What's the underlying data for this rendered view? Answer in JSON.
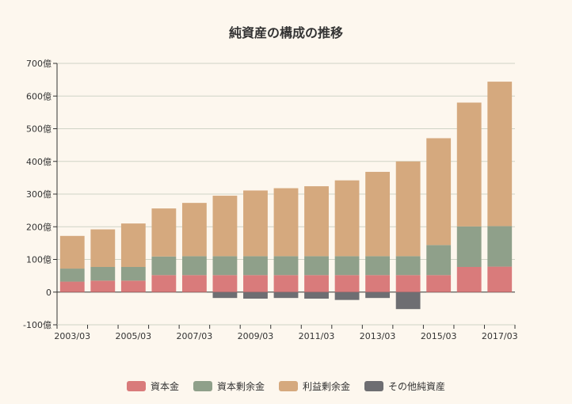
{
  "chart_data": {
    "type": "bar",
    "stacked": true,
    "title": "純資産の構成の推移",
    "xlabel": "",
    "ylabel": "",
    "ylim": [
      -100,
      700
    ],
    "yticks": [
      -100,
      0,
      100,
      200,
      300,
      400,
      500,
      600,
      700
    ],
    "ytick_labels": [
      "-100億",
      "0",
      "100億",
      "200億",
      "300億",
      "400億",
      "500億",
      "600億",
      "700億"
    ],
    "categories": [
      "2003/03",
      "2004/03",
      "2005/03",
      "2006/03",
      "2007/03",
      "2008/03",
      "2009/03",
      "2010/03",
      "2011/03",
      "2012/03",
      "2013/03",
      "2014/03",
      "2015/03",
      "2016/03",
      "2017/03"
    ],
    "xtick_labels": [
      "2003/03",
      "",
      "2005/03",
      "",
      "2007/03",
      "",
      "2009/03",
      "",
      "2011/03",
      "",
      "2013/03",
      "",
      "2015/03",
      "",
      "2017/03"
    ],
    "series": [
      {
        "name": "資本金",
        "color": "#d97b7b",
        "values": [
          32,
          35,
          35,
          52,
          52,
          52,
          52,
          52,
          52,
          52,
          52,
          52,
          52,
          77,
          78
        ]
      },
      {
        "name": "資本剰余金",
        "color": "#8fa08a",
        "values": [
          40,
          42,
          42,
          57,
          58,
          58,
          58,
          58,
          58,
          58,
          58,
          58,
          92,
          124,
          124
        ]
      },
      {
        "name": "利益剰余金",
        "color": "#d5a97e",
        "values": [
          100,
          115,
          133,
          147,
          163,
          185,
          201,
          208,
          214,
          232,
          258,
          290,
          327,
          379,
          442
        ]
      },
      {
        "name": "その他純資産",
        "color": "#6e6e72",
        "values": [
          0,
          0,
          0,
          0,
          0,
          -18,
          -20,
          -18,
          -20,
          -24,
          -18,
          -52,
          0,
          0,
          0
        ]
      }
    ],
    "grid": true,
    "legend_position": "bottom"
  }
}
